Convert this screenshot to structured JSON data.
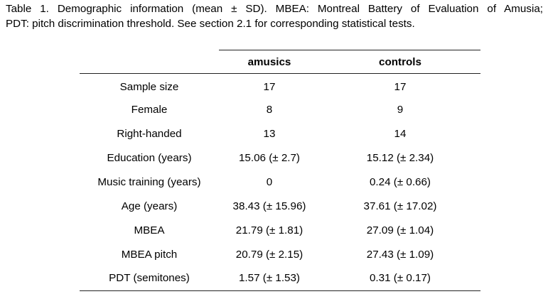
{
  "caption": {
    "line1": "Table 1. Demographic information (mean ± SD). MBEA: Montreal Battery of Evaluation of Amusia;",
    "line2": "PDT: pitch discrimination threshold. See section 2.1 for corresponding statistical tests."
  },
  "table": {
    "headers": [
      "",
      "amusics",
      "controls"
    ],
    "rows": [
      {
        "label": "Sample size",
        "amusics": "17",
        "controls": "17"
      },
      {
        "label": "Female",
        "amusics": "8",
        "controls": "9"
      },
      {
        "label": "Right-handed",
        "amusics": "13",
        "controls": "14"
      },
      {
        "label": "Education (years)",
        "amusics": "15.06 (± 2.7)",
        "controls": "15.12 (± 2.34)"
      },
      {
        "label": "Music training (years)",
        "amusics": "0",
        "controls": "0.24 (± 0.66)"
      },
      {
        "label": "Age (years)",
        "amusics": "38.43 (± 15.96)",
        "controls": "37.61 (± 17.02)"
      },
      {
        "label": "MBEA",
        "amusics": "21.79 (± 1.81)",
        "controls": "27.09 (± 1.04)"
      },
      {
        "label": "MBEA pitch",
        "amusics": "20.79 (± 2.15)",
        "controls": "27.43 (± 1.09)"
      },
      {
        "label": "PDT (semitones)",
        "amusics": "1.57 (± 1.53)",
        "controls": "0.31 (± 0.17)"
      }
    ]
  }
}
